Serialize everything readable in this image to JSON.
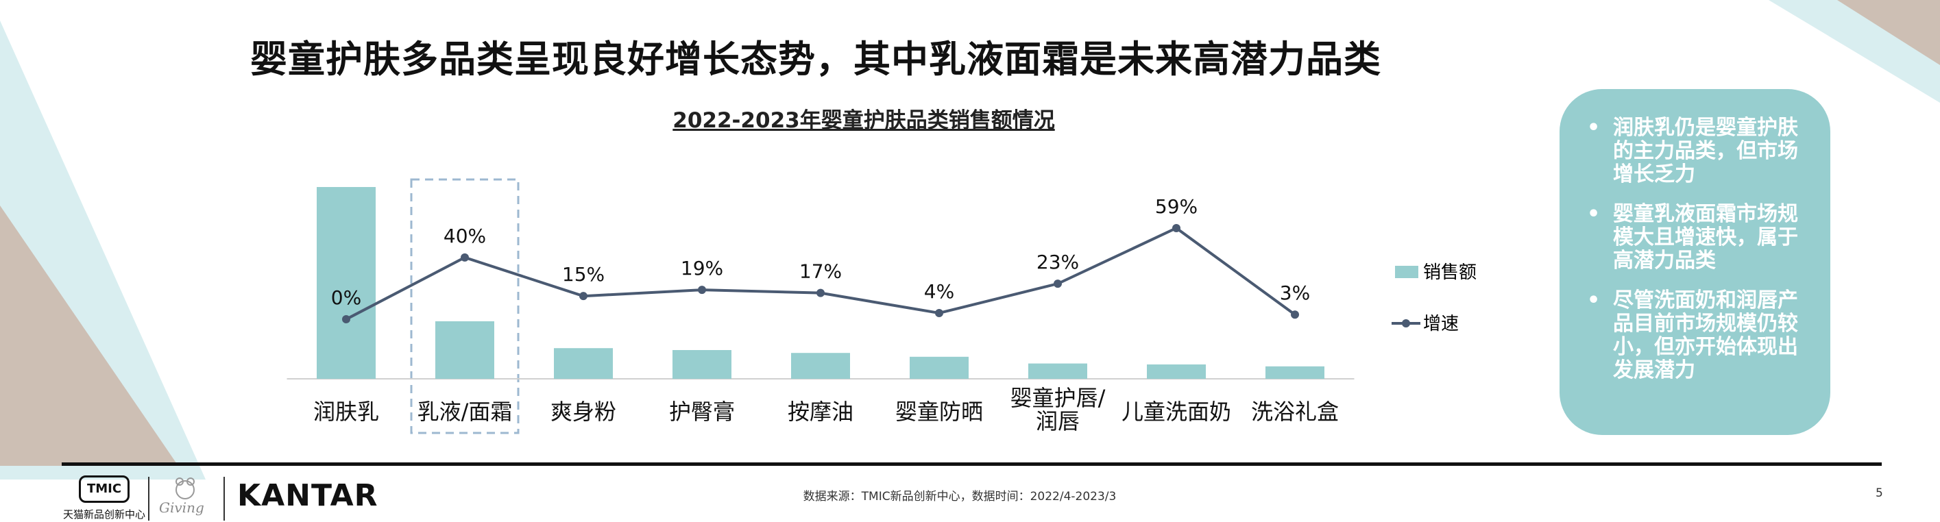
{
  "page": {
    "title": "婴童护肤多品类呈现良好增长态势，其中乳液面霜是未来高潜力品类",
    "source": "数据来源：TMIC新品创新中心，数据时间：2022/4-2023/3",
    "page_number": "5"
  },
  "logos": {
    "tmic_badge": "TMIC",
    "tmic_caption": "天猫新品创新中心",
    "giving": "Giving",
    "kantar": "KANTAR"
  },
  "colors": {
    "bar": "#97cecf",
    "line": "#4a5a72",
    "highlight_box": "#9db8d0",
    "info_box": "#97cecf"
  },
  "chart_data": {
    "type": "bar",
    "title": "2022-2023年婴童护肤品类销售额情况",
    "categories": [
      "润肤乳",
      "乳液/面霜",
      "爽身粉",
      "护臀膏",
      "按摩油",
      "婴童防晒",
      "婴童护唇/润唇",
      "儿童洗面奶",
      "洗浴礼盒"
    ],
    "category_lines": [
      [
        "润肤乳"
      ],
      [
        "乳液/面霜"
      ],
      [
        "爽身粉"
      ],
      [
        "护臀膏"
      ],
      [
        "按摩油"
      ],
      [
        "婴童防晒"
      ],
      [
        "婴童护唇/",
        "润唇"
      ],
      [
        "儿童洗面奶"
      ],
      [
        "洗浴礼盒"
      ]
    ],
    "series": [
      {
        "name": "销售额",
        "type": "bar",
        "values": [
          100,
          30,
          16,
          15,
          13.5,
          11.5,
          8,
          7.5,
          6.5
        ]
      },
      {
        "name": "增速",
        "type": "line",
        "values": [
          0,
          40,
          15,
          19,
          17,
          4,
          23,
          59,
          3
        ],
        "labels": [
          "0%",
          "40%",
          "15%",
          "19%",
          "17%",
          "4%",
          "23%",
          "59%",
          "3%"
        ]
      }
    ],
    "highlighted_category": "乳液/面霜",
    "legend_position": "right",
    "grid": false
  },
  "insights": [
    "润肤乳仍是婴童护肤的主力品类，但市场增长乏力",
    "婴童乳液面霜市场规模大且增速快，属于高潜力品类",
    "尽管洗面奶和润唇产品目前市场规模仍较小，但亦开始体现出发展潜力"
  ]
}
